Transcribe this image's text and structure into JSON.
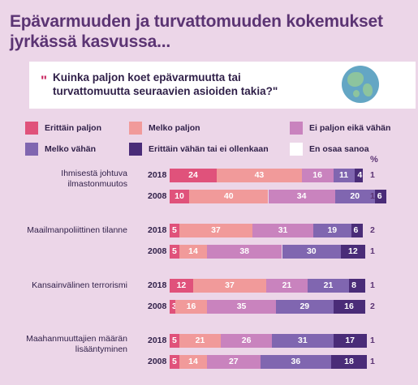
{
  "title": "Epävarmuuden ja turvattomuuden kokemukset jyrkässä kasvussa...",
  "question": {
    "quote_mark": "\"",
    "text": "Kuinka paljon koet epävarmuutta tai turvattomuutta seuraavien asioiden takia?\""
  },
  "icon": "globe-icon",
  "percent_label": "%",
  "colors": {
    "background": "#ecd6e8",
    "title": "#5b3473",
    "erittain_paljon": "#e0527b",
    "melko_paljon": "#f19a9a",
    "ei_paljon_eika_vahan": "#c983be",
    "melko_vahan": "#8066b0",
    "erittain_vahan": "#4a2c78",
    "en_osaa_sanoa": "#ffffff"
  },
  "chart_data": {
    "type": "bar",
    "orientation": "horizontal",
    "stacked": true,
    "title": "Epävarmuuden ja turvattomuuden kokemukset jyrkässä kasvussa...",
    "xlabel": "%",
    "xlim": [
      0,
      100
    ],
    "legend_position": "top",
    "legend": [
      "Erittäin paljon",
      "Melko paljon",
      "Ei paljon eikä vähän",
      "Melko vähän",
      "Erittäin vähän tai ei ollenkaan",
      "En osaa sanoa"
    ],
    "groups": [
      {
        "category": "Ihmisestä johtuva ilmastonmuutos",
        "rows": [
          {
            "year": "2018",
            "values": [
              24,
              43,
              16,
              11,
              4,
              1
            ]
          },
          {
            "year": "2008",
            "values": [
              10,
              40,
              34,
              20,
              6,
              1
            ]
          }
        ]
      },
      {
        "category": "Maailmanpoliittinen tilanne",
        "rows": [
          {
            "year": "2018",
            "values": [
              5,
              37,
              31,
              19,
              6,
              2
            ]
          },
          {
            "year": "2008",
            "values": [
              5,
              14,
              38,
              30,
              12,
              1
            ]
          }
        ]
      },
      {
        "category": "Kansainvälinen terrorismi",
        "rows": [
          {
            "year": "2018",
            "values": [
              12,
              37,
              21,
              21,
              8,
              1
            ]
          },
          {
            "year": "2008",
            "values": [
              3,
              16,
              35,
              29,
              16,
              2
            ]
          }
        ]
      },
      {
        "category": "Maahanmuuttajien määrän lisääntyminen",
        "rows": [
          {
            "year": "2018",
            "values": [
              5,
              21,
              26,
              31,
              17,
              1
            ]
          },
          {
            "year": "2008",
            "values": [
              5,
              14,
              27,
              36,
              18,
              1
            ]
          }
        ]
      }
    ]
  }
}
